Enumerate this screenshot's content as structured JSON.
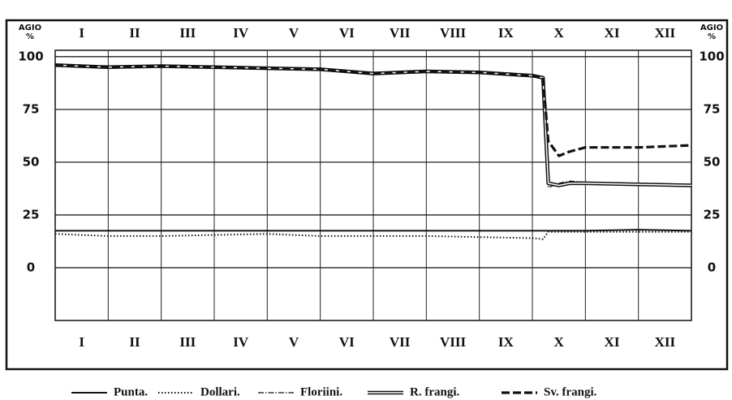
{
  "chart_data": {
    "type": "line",
    "y_label": [
      "AGIO",
      "%"
    ],
    "y2_label": [
      "AGIO",
      "%"
    ],
    "xlim": [
      0,
      12
    ],
    "xticks": [
      {
        "value": 0.5,
        "label": "I"
      },
      {
        "value": 1.5,
        "label": "II"
      },
      {
        "value": 2.5,
        "label": "III"
      },
      {
        "value": 3.5,
        "label": "IV"
      },
      {
        "value": 4.5,
        "label": "V"
      },
      {
        "value": 5.5,
        "label": "VI"
      },
      {
        "value": 6.5,
        "label": "VII"
      },
      {
        "value": 7.5,
        "label": "VIII"
      },
      {
        "value": 8.5,
        "label": "IX"
      },
      {
        "value": 9.5,
        "label": "X"
      },
      {
        "value": 10.5,
        "label": "XI"
      },
      {
        "value": 11.5,
        "label": "XII"
      }
    ],
    "ylim": [
      -25,
      103
    ],
    "yticks": [
      0,
      25,
      50,
      75,
      100
    ],
    "y2lim": [
      -25,
      103
    ],
    "y2ticks": [
      0,
      25,
      50,
      75,
      100
    ],
    "grid": true,
    "legend": "bottom",
    "x": [
      0,
      1,
      2,
      3,
      4,
      5,
      6,
      7,
      8,
      9,
      9.2,
      9.3,
      9.5,
      9.7,
      10,
      11,
      12
    ],
    "series": [
      {
        "name": "Punta.",
        "color": "#111111",
        "style": "solid",
        "values": [
          17.5,
          17.5,
          17.5,
          17.5,
          17.5,
          17.5,
          17.5,
          17.5,
          17.5,
          17.5,
          17.5,
          17.5,
          17.5,
          17.5,
          17.5,
          18,
          17.5
        ]
      },
      {
        "name": "Dollari.",
        "color": "#111111",
        "style": "dotted",
        "values": [
          16,
          15,
          15,
          15.5,
          16,
          15,
          15,
          15,
          14.5,
          14,
          13.5,
          17,
          17,
          17,
          17,
          17,
          17
        ]
      },
      {
        "name": "Floriini.",
        "color": "#111111",
        "style": "dash-dot",
        "values": [
          95.5,
          94.5,
          95,
          94.5,
          94,
          93.5,
          91.5,
          92.5,
          92,
          90.5,
          89.5,
          38,
          40,
          41,
          40.5,
          40,
          39.5
        ]
      },
      {
        "name": "R. frangi.",
        "color": "#111111",
        "style": "double",
        "values": [
          96,
          95,
          95.5,
          95,
          94.5,
          94,
          92,
          93,
          92.5,
          91,
          90,
          40,
          39,
          40,
          40,
          39.5,
          39
        ]
      },
      {
        "name": "Sv. frangi.",
        "color": "#111111",
        "style": "heavy-dashed",
        "values": [
          96,
          95,
          95.5,
          95,
          94.5,
          94,
          92,
          93,
          92.5,
          91,
          90,
          60,
          53,
          55,
          57,
          57,
          58
        ]
      }
    ]
  }
}
